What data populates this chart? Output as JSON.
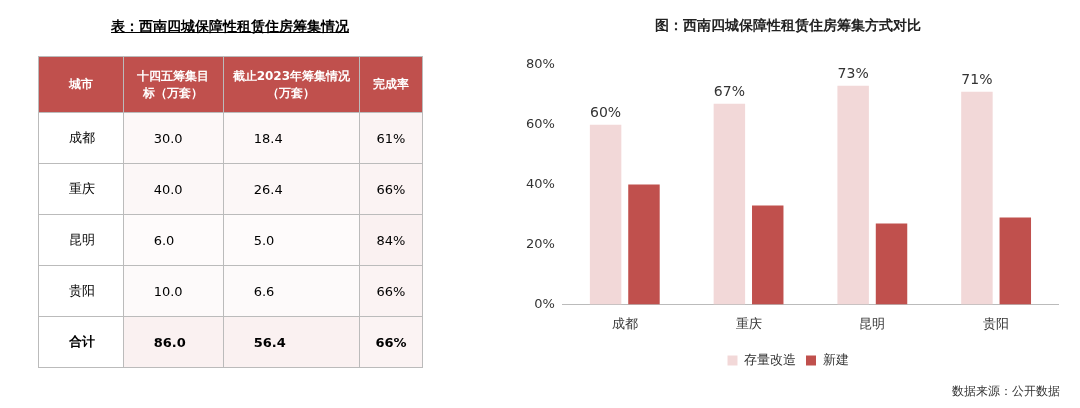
{
  "chart_data": [
    {
      "type": "heatmap",
      "title": "表：西南四城保障性租赁住房筹集情况",
      "ylabel": "城市",
      "categories": [
        "十四五筹集目标（万套）",
        "截止2023年筹集情况（万套）",
        "完成率"
      ],
      "y_categories": [
        "成都",
        "重庆",
        "昆明",
        "贵阳",
        "合计"
      ],
      "cells": [
        [
          30.0,
          18.4,
          61
        ],
        [
          40.0,
          26.4,
          66
        ],
        [
          6.0,
          5.0,
          84
        ],
        [
          10.0,
          6.6,
          66
        ],
        [
          86.0,
          56.4,
          66
        ]
      ],
      "cell_labels": [
        [
          "30.0",
          "18.4",
          "61%"
        ],
        [
          "40.0",
          "26.4",
          "66%"
        ],
        [
          "6.0",
          "5.0",
          "84%"
        ],
        [
          "10.0",
          "6.6",
          "66%"
        ],
        [
          "86.0",
          "56.4",
          "66%"
        ]
      ]
    },
    {
      "type": "bar",
      "title": "图：西南四城保障性租赁住房筹集方式对比",
      "categories": [
        "成都",
        "重庆",
        "昆明",
        "贵阳"
      ],
      "series": [
        {
          "name": "存量改造",
          "color": "#f2d8d8",
          "values": [
            60,
            67,
            73,
            71
          ],
          "value_labels": [
            "60%",
            "67%",
            "73%",
            "71%"
          ]
        },
        {
          "name": "新建",
          "color": "#c0504d",
          "values": [
            40,
            33,
            27,
            29
          ]
        }
      ],
      "ylim": [
        0,
        80
      ],
      "yticks": [
        {
          "value": 0,
          "label": "0%"
        },
        {
          "value": 20,
          "label": "20%"
        },
        {
          "value": 40,
          "label": "40%"
        },
        {
          "value": 60,
          "label": "60%"
        },
        {
          "value": 80,
          "label": "80%"
        }
      ],
      "grid": false,
      "legend": "bottom",
      "annotations": [
        "数据来源：公开数据"
      ]
    }
  ]
}
